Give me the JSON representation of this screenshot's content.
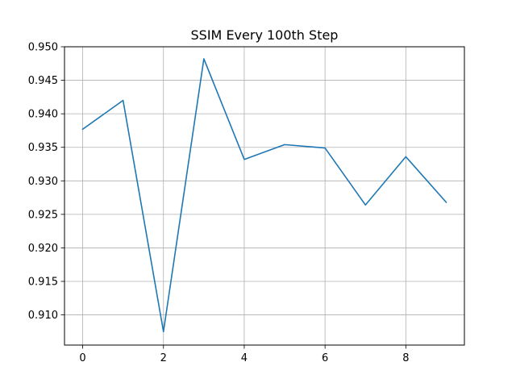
{
  "chart_data": {
    "type": "line",
    "title": "SSIM Every 100th Step",
    "xlabel": "",
    "ylabel": "",
    "xlim": [
      -0.45,
      9.45
    ],
    "ylim": [
      0.9055,
      0.95
    ],
    "x_ticks": [
      0,
      2,
      4,
      6,
      8
    ],
    "x_tick_labels": [
      "0",
      "2",
      "4",
      "6",
      "8"
    ],
    "y_ticks": [
      0.91,
      0.915,
      0.92,
      0.925,
      0.93,
      0.935,
      0.94,
      0.945,
      0.95
    ],
    "y_tick_labels": [
      "0.910",
      "0.915",
      "0.920",
      "0.925",
      "0.930",
      "0.935",
      "0.940",
      "0.945",
      "0.950"
    ],
    "grid": true,
    "series": [
      {
        "color": "#1f77b4",
        "x": [
          0,
          1,
          2,
          3,
          4,
          5,
          6,
          7,
          8,
          9
        ],
        "y": [
          0.9377,
          0.942,
          0.9075,
          0.9482,
          0.9332,
          0.9354,
          0.9349,
          0.9264,
          0.9336,
          0.9268
        ]
      }
    ]
  }
}
